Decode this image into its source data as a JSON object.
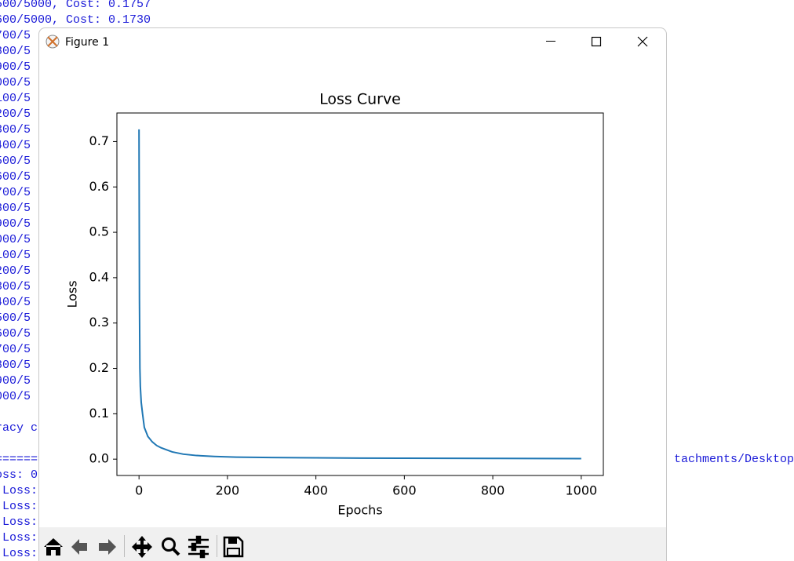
{
  "terminal": {
    "block1": [
      "500/5000, Cost: 0.1757",
      "600/5000, Cost: 0.1730",
      "700/5",
      "800/5",
      "900/5",
      "000/5",
      "100/5",
      "200/5",
      "300/5",
      "400/5",
      "500/5",
      "600/5",
      "700/5",
      "800/5",
      "900/5",
      "000/5",
      "100/5",
      "200/5",
      "300/5",
      "400/5",
      "500/5",
      "600/5",
      "700/5",
      "800/5",
      "900/5",
      "000/5"
    ],
    "block2": [
      "racy c"
    ],
    "block3": [
      "=========",
      "oss: 0",
      " Loss:",
      " Loss:",
      " Loss:",
      " Loss:",
      " Loss:"
    ],
    "right_text": "tachments/Desktop"
  },
  "window": {
    "title": "Figure 1"
  },
  "chart_data": {
    "type": "line",
    "title": "Loss Curve",
    "x_label": "Epochs",
    "y_label": "Loss",
    "x": [
      0,
      1,
      2,
      3,
      5,
      8,
      12,
      20,
      30,
      40,
      50,
      75,
      100,
      130,
      170,
      220,
      300,
      400,
      500,
      600,
      700,
      800,
      900,
      1000
    ],
    "values": [
      0.727,
      0.35,
      0.2,
      0.16,
      0.125,
      0.1,
      0.07,
      0.05,
      0.038,
      0.03,
      0.025,
      0.016,
      0.011,
      0.008,
      0.006,
      0.0045,
      0.0035,
      0.0028,
      0.0023,
      0.002,
      0.0018,
      0.0016,
      0.0014,
      0.0012
    ],
    "color": "#1f77b4",
    "xlim": [
      -50,
      1050
    ],
    "ylim": [
      -0.036,
      0.763
    ],
    "xticks": [
      0,
      200,
      400,
      600,
      800,
      1000
    ],
    "yticks": [
      {
        "value": 0,
        "label": "0.0"
      },
      0.1,
      0.2,
      0.3,
      0.4,
      0.5,
      0.6,
      0.7
    ],
    "grid": false
  }
}
